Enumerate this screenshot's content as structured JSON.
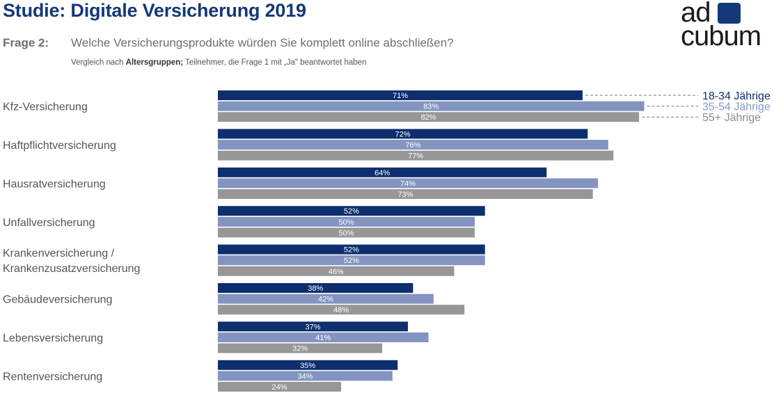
{
  "header": {
    "title": "Studie: Digitale Versicherung 2019",
    "question_label": "Frage 2:",
    "question_text": "Welche Versicherungsprodukte würden Sie komplett online abschließen?",
    "subtitle_prefix": "Vergleich nach ",
    "subtitle_bold": "Altersgruppen;",
    "subtitle_rest": " Teilnehmer, die Frage 1 mit „Ja\" beantwortet haben"
  },
  "logo": {
    "line1": "ad",
    "line2": "cubum",
    "mark_color": "#143878"
  },
  "chart_data": {
    "type": "bar",
    "orientation": "horizontal",
    "categories": [
      "Kfz-Versicherung",
      "Haftpflichtversicherung",
      "Hausratversicherung",
      "Unfallversicherung",
      "Krankenversicherung / Krankenzusatzversicherung",
      "Gebäudeversicherung",
      "Lebensversicherung",
      "Rentenversicherung"
    ],
    "category_lines": [
      [
        "Kfz-Versicherung"
      ],
      [
        "Haftpflichtversicherung"
      ],
      [
        "Hausratversicherung"
      ],
      [
        "Unfallversicherung"
      ],
      [
        "Krankenversicherung /",
        "Krankenzusatzversicherung"
      ],
      [
        "Gebäudeversicherung"
      ],
      [
        "Lebensversicherung"
      ],
      [
        "Rentenversicherung"
      ]
    ],
    "series": [
      {
        "name": "18-34 Jährige",
        "color": "#0e2f6e",
        "label_color": "#0e2f6e",
        "values": [
          71,
          72,
          64,
          52,
          52,
          38,
          37,
          35
        ]
      },
      {
        "name": "35-54 Jährige",
        "color": "#8394c0",
        "label_color": "#8a9bc6",
        "values": [
          83,
          76,
          74,
          50,
          52,
          42,
          41,
          34
        ]
      },
      {
        "name": "55+ Jährige",
        "color": "#979797",
        "label_color": "#8c8c8c",
        "values": [
          82,
          77,
          73,
          50,
          46,
          48,
          32,
          24
        ]
      }
    ],
    "value_suffix": "%",
    "xlim": [
      0,
      100
    ],
    "legend_position": "top-right",
    "grid": false
  }
}
